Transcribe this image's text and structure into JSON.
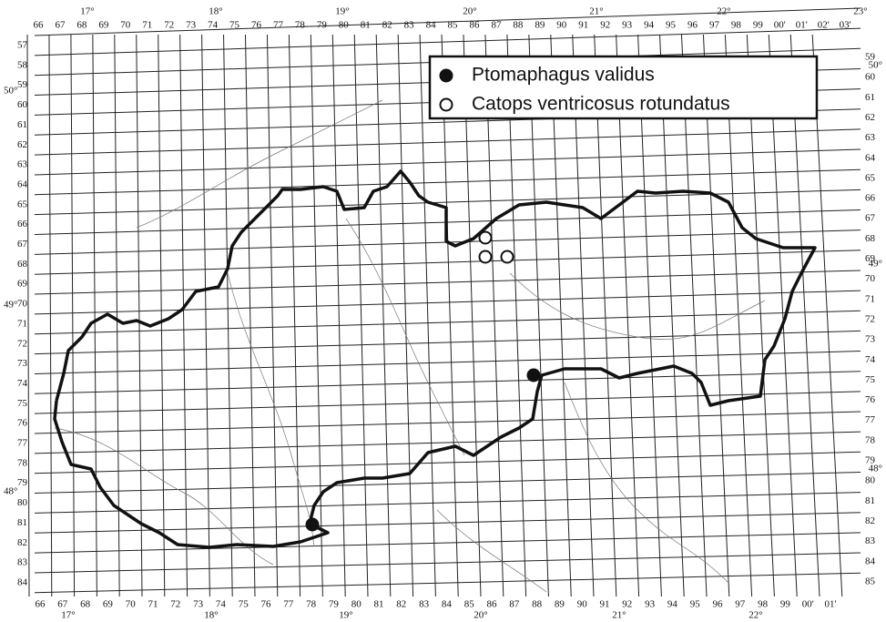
{
  "legend": [
    {
      "label": "Ptomaphagus validus",
      "marker": "filled"
    },
    {
      "label": "Catops ventricosus rotundatus",
      "marker": "open"
    }
  ],
  "top_labels": [
    "66",
    "67",
    "68",
    "69",
    "70",
    "71",
    "72",
    "73",
    "74",
    "75",
    "76",
    "77",
    "78",
    "79",
    "80",
    "81",
    "82",
    "83",
    "84",
    "85",
    "86",
    "87",
    "88",
    "89",
    "90",
    "91",
    "92",
    "93",
    "94",
    "95",
    "96",
    "97",
    "98",
    "99",
    "00'",
    "01'",
    "02'",
    "03'"
  ],
  "top_degrees": [
    "17°",
    "18°",
    "19°",
    "20°",
    "21°",
    "22°",
    "23°"
  ],
  "bottom_labels": [
    "66",
    "67",
    "68",
    "69",
    "70",
    "71",
    "72",
    "73",
    "74",
    "75",
    "76",
    "77",
    "78",
    "79",
    "80",
    "81",
    "82",
    "83",
    "84",
    "85",
    "86",
    "87",
    "88",
    "89",
    "90",
    "91",
    "92",
    "93",
    "94",
    "95",
    "96",
    "97",
    "98",
    "99",
    "00'",
    "01'"
  ],
  "bottom_degrees": [
    "17°",
    "18°",
    "19°",
    "20°",
    "21°",
    "22°"
  ],
  "left_labels": [
    "57",
    "58",
    "59",
    "60",
    "61",
    "62",
    "63",
    "64",
    "65",
    "66",
    "67",
    "68",
    "69",
    "70",
    "71",
    "72",
    "73",
    "74",
    "75",
    "76",
    "77",
    "78",
    "79",
    "80",
    "81",
    "82",
    "83",
    "84"
  ],
  "right_labels": [
    "59",
    "60",
    "61",
    "62",
    "63",
    "64",
    "65",
    "66",
    "67",
    "68",
    "69",
    "70",
    "71",
    "72",
    "73",
    "74",
    "75",
    "76",
    "77",
    "78",
    "79",
    "80",
    "81",
    "82",
    "83",
    "84",
    "85"
  ],
  "left_latitudes": [
    "50°",
    "49°",
    "48°"
  ],
  "right_latitudes": [
    "50°",
    "49°",
    "48°"
  ]
}
